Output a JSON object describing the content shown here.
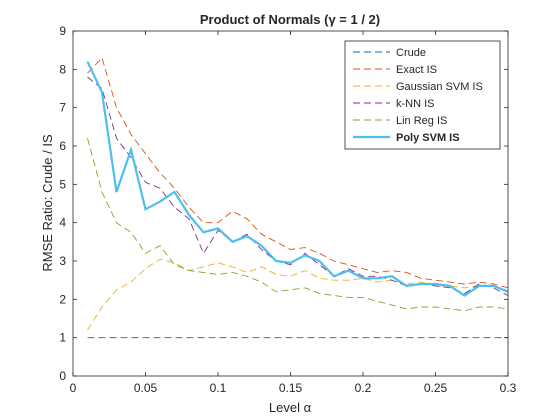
{
  "chart_data": {
    "type": "line",
    "title": "Product of Normals (γ = 1 / 2)",
    "xlabel": "Level α",
    "ylabel": "RMSE Ratio: Crude / IS",
    "xlim": [
      0,
      0.3
    ],
    "ylim": [
      0,
      9
    ],
    "xticks": [
      0,
      0.05,
      0.1,
      0.15,
      0.2,
      0.25,
      0.3
    ],
    "xtick_labels": [
      "0",
      "0.05",
      "0.1",
      "0.15",
      "0.2",
      "0.25",
      "0.3"
    ],
    "yticks": [
      0,
      1,
      2,
      3,
      4,
      5,
      6,
      7,
      8,
      9
    ],
    "ytick_labels": [
      "0",
      "1",
      "2",
      "3",
      "4",
      "5",
      "6",
      "7",
      "8",
      "9"
    ],
    "grid": false,
    "legend_position": "top-right",
    "x": [
      0.01,
      0.02,
      0.03,
      0.04,
      0.05,
      0.06,
      0.07,
      0.08,
      0.09,
      0.1,
      0.11,
      0.12,
      0.13,
      0.14,
      0.15,
      0.16,
      0.17,
      0.18,
      0.19,
      0.2,
      0.21,
      0.22,
      0.23,
      0.24,
      0.25,
      0.26,
      0.27,
      0.28,
      0.29,
      0.3
    ],
    "series": [
      {
        "name": "Crude",
        "color": "#0072BD",
        "style": "dashed",
        "bold": false,
        "values": [
          1,
          1,
          1,
          1,
          1,
          1,
          1,
          1,
          1,
          1,
          1,
          1,
          1,
          1,
          1,
          1,
          1,
          1,
          1,
          1,
          1,
          1,
          1,
          1,
          1,
          1,
          1,
          1,
          1,
          1
        ]
      },
      {
        "name": "Exact IS",
        "color": "#D95319",
        "style": "dashed",
        "bold": false,
        "values": [
          7.9,
          8.3,
          7.0,
          6.3,
          5.8,
          5.3,
          4.9,
          4.4,
          4.0,
          4.0,
          4.3,
          4.1,
          3.7,
          3.5,
          3.3,
          3.35,
          3.2,
          3.0,
          2.9,
          2.8,
          2.7,
          2.75,
          2.7,
          2.55,
          2.5,
          2.45,
          2.4,
          2.45,
          2.4,
          2.3
        ]
      },
      {
        "name": "Gaussian SVM IS",
        "color": "#EDB120",
        "style": "dashed",
        "bold": false,
        "values": [
          1.2,
          1.8,
          2.25,
          2.45,
          2.8,
          3.05,
          2.95,
          2.75,
          2.85,
          2.95,
          2.85,
          2.7,
          2.85,
          2.65,
          2.6,
          2.75,
          2.55,
          2.5,
          2.5,
          2.55,
          2.45,
          2.5,
          2.4,
          2.45,
          2.35,
          2.35,
          2.3,
          2.35,
          2.35,
          2.2
        ]
      },
      {
        "name": "k-NN IS",
        "color": "#7E2F8E",
        "style": "dashed",
        "bold": false,
        "values": [
          7.8,
          7.5,
          6.2,
          5.7,
          5.05,
          4.9,
          4.4,
          4.1,
          3.2,
          3.8,
          3.5,
          3.7,
          3.3,
          3.0,
          2.9,
          3.2,
          2.9,
          2.6,
          2.8,
          2.6,
          2.6,
          2.5,
          2.35,
          2.4,
          2.35,
          2.3,
          2.15,
          2.4,
          2.3,
          2.1
        ]
      },
      {
        "name": "Lin Reg IS",
        "color": "#77AC30",
        "style": "dashed",
        "bold": false,
        "values": [
          6.2,
          4.8,
          4.0,
          3.75,
          3.2,
          3.4,
          2.9,
          2.75,
          2.7,
          2.65,
          2.7,
          2.6,
          2.45,
          2.2,
          2.25,
          2.3,
          2.15,
          2.1,
          2.05,
          2.05,
          1.95,
          1.85,
          1.75,
          1.8,
          1.8,
          1.75,
          1.7,
          1.8,
          1.8,
          1.75
        ]
      },
      {
        "name": "Poly SVM IS",
        "color": "#4DBEEE",
        "style": "solid",
        "bold": true,
        "values": [
          8.2,
          7.4,
          4.8,
          5.9,
          4.35,
          4.55,
          4.8,
          4.2,
          3.75,
          3.85,
          3.5,
          3.65,
          3.4,
          3.0,
          2.95,
          3.15,
          3.0,
          2.6,
          2.75,
          2.55,
          2.55,
          2.6,
          2.35,
          2.4,
          2.4,
          2.35,
          2.1,
          2.35,
          2.35,
          2.2
        ]
      }
    ]
  }
}
